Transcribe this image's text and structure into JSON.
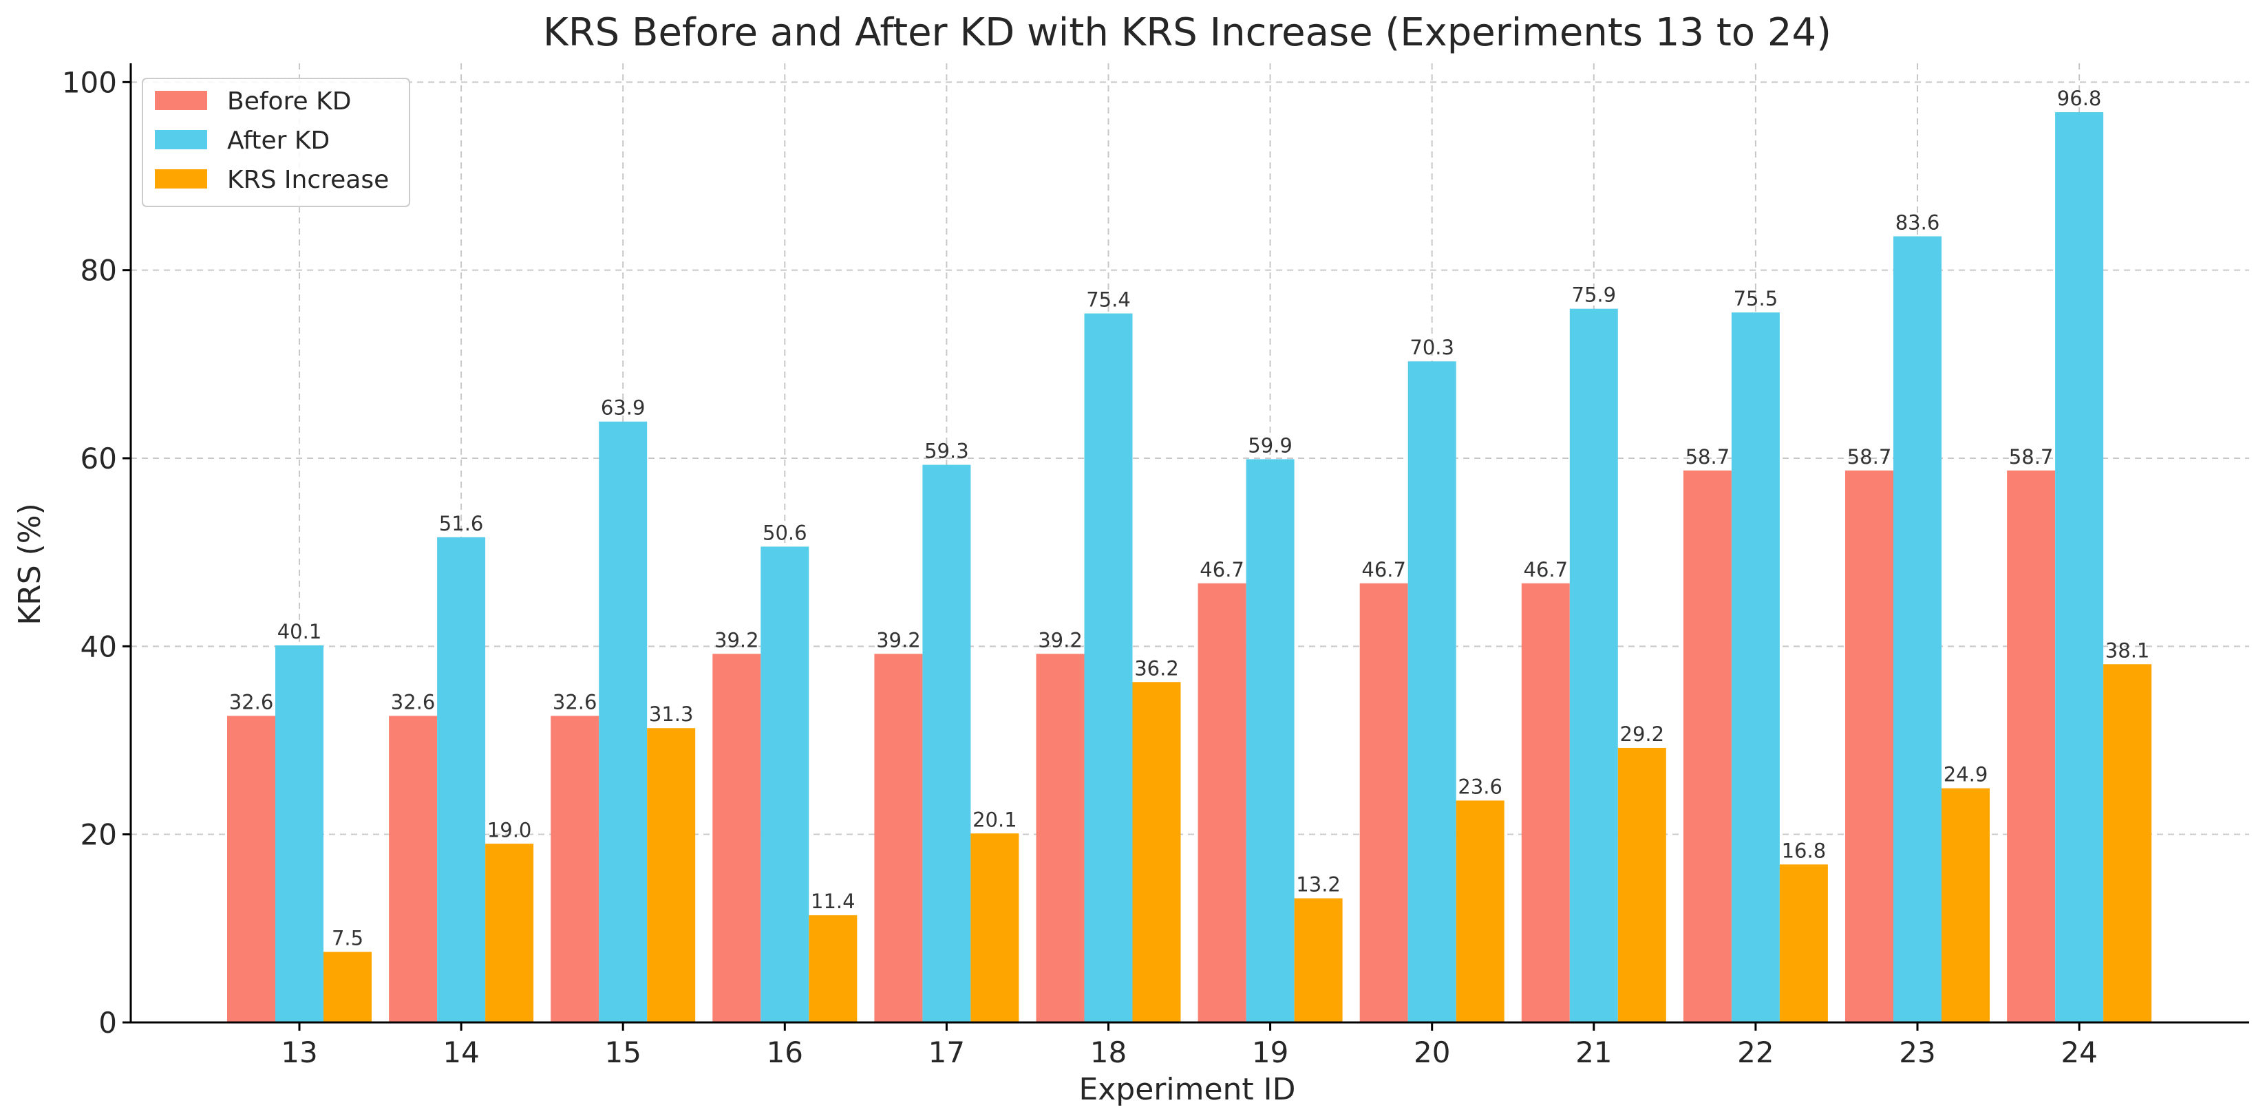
{
  "chart_data": {
    "type": "bar",
    "title": "KRS Before and After KD with KRS Increase (Experiments 13 to 24)",
    "xlabel": "Experiment ID",
    "ylabel": "KRS (%)",
    "ylim": [
      0,
      102
    ],
    "yticks": [
      0,
      20,
      40,
      60,
      80,
      100
    ],
    "grid": true,
    "legend_position": "top-left",
    "categories": [
      "13",
      "14",
      "15",
      "16",
      "17",
      "18",
      "19",
      "20",
      "21",
      "22",
      "23",
      "24"
    ],
    "series": [
      {
        "name": "Before KD",
        "color": "#FA8072",
        "values": [
          32.6,
          32.6,
          32.6,
          39.2,
          39.2,
          39.2,
          46.7,
          46.7,
          46.7,
          58.7,
          58.7,
          58.7
        ],
        "labels": [
          "32.6",
          "32.6",
          "32.6",
          "39.2",
          "39.2",
          "39.2",
          "46.7",
          "46.7",
          "46.7",
          "58.7",
          "58.7",
          "58.7"
        ]
      },
      {
        "name": "After KD",
        "color": "#56CDEA",
        "values": [
          40.1,
          51.6,
          63.9,
          50.6,
          59.3,
          75.4,
          59.9,
          70.3,
          75.9,
          75.5,
          83.6,
          96.8
        ],
        "labels": [
          "40.1",
          "51.6",
          "63.9",
          "50.6",
          "59.3",
          "75.4",
          "59.9",
          "70.3",
          "75.9",
          "75.5",
          "83.6",
          "96.8"
        ]
      },
      {
        "name": "KRS Increase",
        "color": "#FFA500",
        "values": [
          7.5,
          19.0,
          31.3,
          11.4,
          20.1,
          36.2,
          13.2,
          23.6,
          29.2,
          16.8,
          24.9,
          38.1
        ],
        "labels": [
          "7.5",
          "19.0",
          "31.3",
          "11.4",
          "20.1",
          "36.2",
          "13.2",
          "23.6",
          "29.2",
          "16.8",
          "24.9",
          "38.1"
        ]
      }
    ]
  }
}
